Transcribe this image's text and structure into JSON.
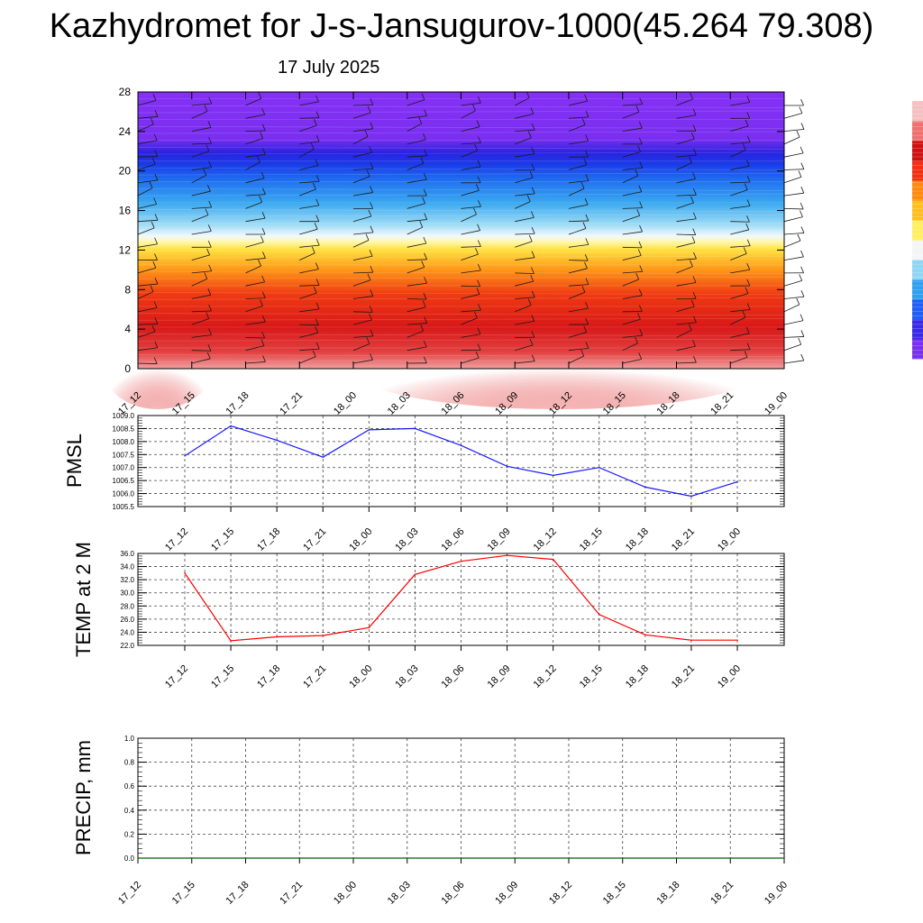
{
  "title": "Kazhydromet for J-s-Jansugurov-1000(45.264 79.308)",
  "subtitle": "17 July 2025",
  "colors": {
    "pmsl_line": "#1a1aff",
    "temp_line": "#ff0000",
    "precip_line": "#006400",
    "grid": "#555555"
  },
  "chart_data": [
    {
      "type": "heatmap",
      "description_tag": "cross-section",
      "x": [
        "17_12",
        "17_15",
        "17_18",
        "17_21",
        "18_00",
        "18_03",
        "18_06",
        "18_09",
        "18_12",
        "18_15",
        "18_18",
        "18_21",
        "19_00"
      ],
      "ylim": [
        0,
        28
      ],
      "yticks": [
        0,
        4,
        8,
        12,
        16,
        20,
        24,
        28
      ],
      "colorbar": [
        "#7a2ff0",
        "#3a2ae8",
        "#1f5ff5",
        "#2fa0f0",
        "#8fd6f5",
        "#f5f5f5",
        "#ffef60",
        "#ffbf20",
        "#ff8a10",
        "#f03010",
        "#d01010",
        "#f07070",
        "#f5c0c0"
      ],
      "grid": false
    },
    {
      "type": "line",
      "ylabel": "PMSL",
      "x": [
        "17_12",
        "17_15",
        "17_18",
        "17_21",
        "18_00",
        "18_03",
        "18_06",
        "18_09",
        "18_12",
        "18_15",
        "18_18",
        "18_21",
        "19_00"
      ],
      "values": [
        1007.45,
        1008.6,
        1008.05,
        1007.4,
        1008.45,
        1008.5,
        1007.85,
        1007.05,
        1006.7,
        1007.0,
        1006.25,
        1005.9,
        1006.45
      ],
      "ylim": [
        1005.5,
        1009.0
      ],
      "yticks": [
        "1005.5",
        "1006.0",
        "1006.5",
        "1007.0",
        "1007.5",
        "1008.0",
        "1008.5",
        "1009.0"
      ],
      "grid": true
    },
    {
      "type": "line",
      "ylabel": "TEMP at 2 M",
      "x": [
        "17_12",
        "17_15",
        "17_18",
        "17_21",
        "18_00",
        "18_03",
        "18_06",
        "18_09",
        "18_12",
        "18_15",
        "18_18",
        "18_21",
        "19_00"
      ],
      "values": [
        33.0,
        22.7,
        23.3,
        23.5,
        24.7,
        32.8,
        34.8,
        35.7,
        35.1,
        26.7,
        23.6,
        22.8,
        22.8
      ],
      "ylim": [
        22.0,
        36.0
      ],
      "yticks": [
        "22.0",
        "24.0",
        "26.0",
        "28.0",
        "30.0",
        "32.0",
        "34.0",
        "36.0"
      ],
      "grid": true
    },
    {
      "type": "line",
      "ylabel": "PRECIP, mm",
      "x": [
        "17_12",
        "17_15",
        "17_18",
        "17_21",
        "18_00",
        "18_03",
        "18_06",
        "18_09",
        "18_12",
        "18_15",
        "18_18",
        "18_21",
        "19_00"
      ],
      "values": [
        0,
        0,
        0,
        0,
        0,
        0,
        0,
        0,
        0,
        0,
        0,
        0,
        0
      ],
      "ylim": [
        0.0,
        1.0
      ],
      "yticks": [
        "0.0",
        "0.2",
        "0.4",
        "0.6",
        "0.8",
        "1.0"
      ],
      "grid": true
    }
  ]
}
